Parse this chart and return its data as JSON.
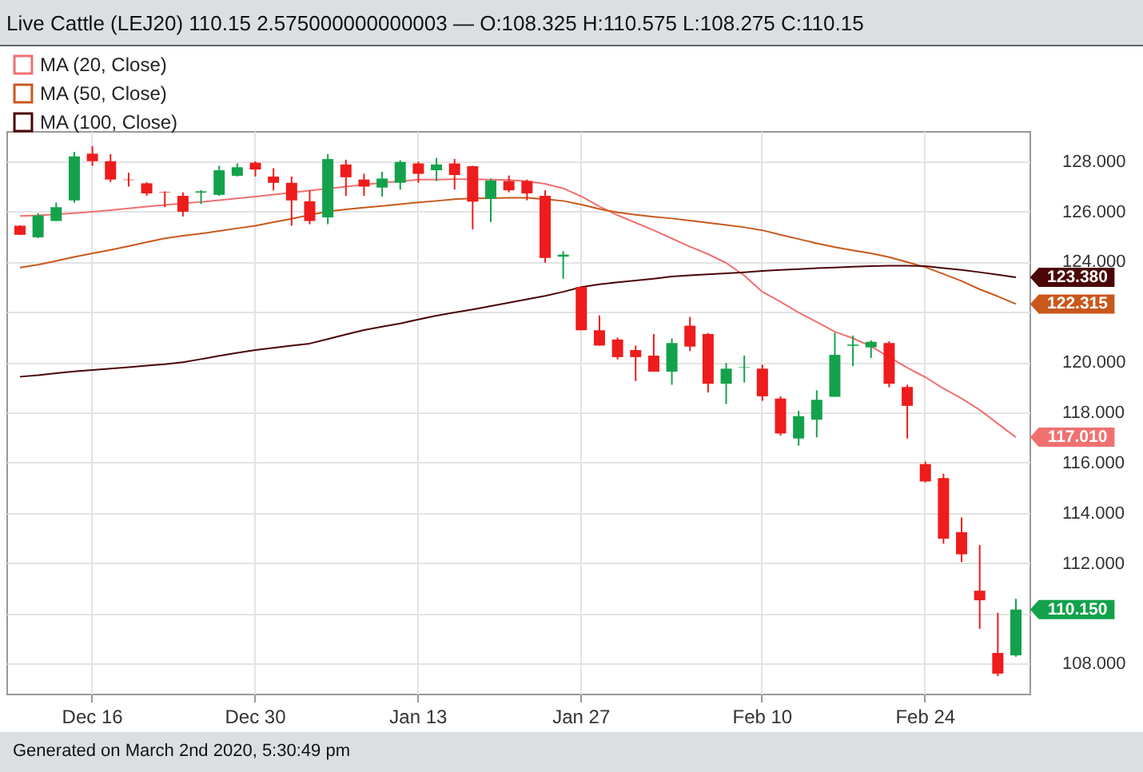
{
  "chart_data": {
    "type": "candlestick",
    "title": "Live Cattle (LEJ20) 110.15 2.575000000000003 — O:108.325 H:110.575 L:108.275 C:110.15",
    "categories": [
      null,
      null,
      null,
      null,
      "Dec 16",
      null,
      null,
      null,
      null,
      null,
      null,
      null,
      null,
      "Dec 30",
      null,
      null,
      null,
      null,
      null,
      null,
      null,
      null,
      "Jan 13",
      null,
      null,
      null,
      null,
      null,
      null,
      null,
      null,
      "Jan 27",
      null,
      null,
      null,
      null,
      null,
      null,
      null,
      null,
      null,
      "Feb 10",
      null,
      null,
      null,
      null,
      null,
      null,
      null,
      null,
      "Feb 24",
      null,
      null,
      null,
      null,
      null
    ],
    "ohlc": [
      [
        125.43,
        125.45,
        125.07,
        125.07
      ],
      [
        124.97,
        125.93,
        124.94,
        125.84
      ],
      [
        125.62,
        126.35,
        125.62,
        126.17
      ],
      [
        126.44,
        128.37,
        126.35,
        128.19
      ],
      [
        128.3,
        128.6,
        127.82,
        128.0
      ],
      [
        128.0,
        128.28,
        127.17,
        127.27
      ],
      [
        127.27,
        127.54,
        126.99,
        127.25
      ],
      [
        127.12,
        127.17,
        126.62,
        126.72
      ],
      [
        126.77,
        126.8,
        126.17,
        126.75
      ],
      [
        126.62,
        126.76,
        125.8,
        125.99
      ],
      [
        126.75,
        126.85,
        126.29,
        126.8
      ],
      [
        126.66,
        127.82,
        126.62,
        127.64
      ],
      [
        127.42,
        127.91,
        127.39,
        127.76
      ],
      [
        127.94,
        128.0,
        127.39,
        127.67
      ],
      [
        127.39,
        127.72,
        126.84,
        127.14
      ],
      [
        127.14,
        127.39,
        125.43,
        126.44
      ],
      [
        126.4,
        126.84,
        125.49,
        125.62
      ],
      [
        125.76,
        128.28,
        125.49,
        128.09
      ],
      [
        127.87,
        128.06,
        126.62,
        127.36
      ],
      [
        127.27,
        127.5,
        126.62,
        126.99
      ],
      [
        126.95,
        127.58,
        126.59,
        127.31
      ],
      [
        127.14,
        128.04,
        126.87,
        127.97
      ],
      [
        127.91,
        127.98,
        127.14,
        127.5
      ],
      [
        127.64,
        128.13,
        127.21,
        127.87
      ],
      [
        127.91,
        128.09,
        126.87,
        127.45
      ],
      [
        127.8,
        127.82,
        125.29,
        126.39
      ],
      [
        126.5,
        127.31,
        125.58,
        127.23
      ],
      [
        127.21,
        127.43,
        126.76,
        126.84
      ],
      [
        127.21,
        127.27,
        126.44,
        126.72
      ],
      [
        126.62,
        126.84,
        123.96,
        124.15
      ],
      [
        124.2,
        124.42,
        123.32,
        124.28
      ],
      [
        122.99,
        122.99,
        121.27,
        121.27
      ],
      [
        121.27,
        121.86,
        120.66,
        120.66
      ],
      [
        120.9,
        120.98,
        120.11,
        120.2
      ],
      [
        120.48,
        120.66,
        119.25,
        120.2
      ],
      [
        120.26,
        121.12,
        119.62,
        119.62
      ],
      [
        119.62,
        120.94,
        119.1,
        120.76
      ],
      [
        121.45,
        121.8,
        120.44,
        120.62
      ],
      [
        121.12,
        121.16,
        118.79,
        119.14
      ],
      [
        119.14,
        119.96,
        118.33,
        119.74
      ],
      [
        119.78,
        120.26,
        119.19,
        119.8
      ],
      [
        119.74,
        119.9,
        118.46,
        118.64
      ],
      [
        118.55,
        118.64,
        117.08,
        117.16
      ],
      [
        116.96,
        118.06,
        116.68,
        117.85
      ],
      [
        117.71,
        118.88,
        117.01,
        118.5
      ],
      [
        118.62,
        121.17,
        118.62,
        120.29
      ],
      [
        120.65,
        121.06,
        119.84,
        120.7
      ],
      [
        120.59,
        120.87,
        120.17,
        120.81
      ],
      [
        120.76,
        120.83,
        119.0,
        119.14
      ],
      [
        119.01,
        119.1,
        116.96,
        118.26
      ],
      [
        115.94,
        116.04,
        115.21,
        115.25
      ],
      [
        115.38,
        115.56,
        112.77,
        112.97
      ],
      [
        113.23,
        113.82,
        112.04,
        112.35
      ],
      [
        110.9,
        112.72,
        109.38,
        110.52
      ],
      [
        108.42,
        110.02,
        107.5,
        107.6
      ],
      [
        108.325,
        110.575,
        108.275,
        110.15
      ]
    ],
    "colors": [
      "#ee1c1c",
      "#13a24b",
      "#13a24b",
      "#13a24b",
      "#ee1c1c",
      "#ee1c1c",
      "#ee1c1c",
      "#ee1c1c",
      "#ee1c1c",
      "#ee1c1c",
      "#13a24b",
      "#13a24b",
      "#13a24b",
      "#ee1c1c",
      "#ee1c1c",
      "#ee1c1c",
      "#ee1c1c",
      "#13a24b",
      "#ee1c1c",
      "#ee1c1c",
      "#13a24b",
      "#13a24b",
      "#ee1c1c",
      "#13a24b",
      "#ee1c1c",
      "#ee1c1c",
      "#13a24b",
      "#ee1c1c",
      "#ee1c1c",
      "#ee1c1c",
      "#13a24b",
      "#ee1c1c",
      "#ee1c1c",
      "#ee1c1c",
      "#ee1c1c",
      "#ee1c1c",
      "#13a24b",
      "#ee1c1c",
      "#ee1c1c",
      "#13a24b",
      "#13a24b",
      "#ee1c1c",
      "#ee1c1c",
      "#13a24b",
      "#13a24b",
      "#13a24b",
      "#13a24b",
      "#13a24b",
      "#ee1c1c",
      "#ee1c1c",
      "#ee1c1c",
      "#ee1c1c",
      "#ee1c1c",
      "#ee1c1c",
      "#ee1c1c",
      "#13a24b"
    ],
    "series": [
      {
        "name": "MA (20, Close)",
        "type": "line",
        "color": "#f07070",
        "value_labels": [
          null,
          null,
          null,
          null,
          null,
          null,
          null,
          null,
          null,
          null,
          null,
          null,
          null,
          null,
          null,
          null,
          null,
          null,
          null,
          null,
          null,
          null,
          null,
          null,
          null,
          null,
          null,
          null,
          null,
          null,
          null,
          null,
          null,
          null,
          null,
          null,
          null,
          null,
          null,
          null,
          null,
          null,
          null,
          null,
          null,
          null,
          null,
          null,
          null,
          null,
          null,
          null,
          null,
          null,
          null,
          "117.010"
        ],
        "values": [
          125.82,
          125.84,
          125.88,
          125.93,
          125.99,
          126.05,
          126.12,
          126.19,
          126.26,
          126.32,
          126.38,
          126.45,
          126.52,
          126.59,
          126.67,
          126.75,
          126.83,
          126.91,
          126.99,
          127.07,
          127.14,
          127.2,
          127.27,
          127.27,
          127.28,
          127.28,
          127.27,
          127.25,
          127.2,
          127.1,
          126.92,
          126.6,
          126.2,
          125.85,
          125.55,
          125.25,
          124.92,
          124.6,
          124.3,
          123.95,
          123.45,
          122.8,
          122.4,
          121.97,
          121.6,
          121.21,
          120.95,
          120.63,
          120.2,
          119.78,
          119.4,
          118.95,
          118.55,
          118.1,
          117.55,
          117.01
        ]
      },
      {
        "name": "MA (50, Close)",
        "type": "line",
        "color": "#c8581c",
        "value_labels": [
          null,
          null,
          null,
          null,
          null,
          null,
          null,
          null,
          null,
          null,
          null,
          null,
          null,
          null,
          null,
          null,
          null,
          null,
          null,
          null,
          null,
          null,
          null,
          null,
          null,
          null,
          null,
          null,
          null,
          null,
          null,
          null,
          null,
          null,
          null,
          null,
          null,
          null,
          null,
          null,
          null,
          null,
          null,
          null,
          null,
          null,
          null,
          null,
          null,
          null,
          null,
          null,
          null,
          null,
          null,
          "122.315"
        ],
        "values": [
          123.77,
          123.88,
          124.03,
          124.19,
          124.33,
          124.47,
          124.62,
          124.78,
          124.93,
          125.03,
          125.12,
          125.22,
          125.33,
          125.43,
          125.57,
          125.71,
          125.86,
          126.0,
          126.08,
          126.15,
          126.22,
          126.29,
          126.36,
          126.42,
          126.49,
          126.52,
          126.53,
          126.54,
          126.54,
          126.49,
          126.42,
          126.27,
          126.1,
          125.96,
          125.87,
          125.79,
          125.72,
          125.64,
          125.55,
          125.46,
          125.37,
          125.25,
          125.07,
          124.9,
          124.73,
          124.58,
          124.45,
          124.33,
          124.18,
          123.98,
          123.78,
          123.51,
          123.23,
          122.9,
          122.62,
          122.315
        ]
      },
      {
        "name": "MA (100, Close)",
        "type": "line",
        "color": "#4a0505",
        "value_labels": [
          null,
          null,
          null,
          null,
          null,
          null,
          null,
          null,
          null,
          null,
          null,
          null,
          null,
          null,
          null,
          null,
          null,
          null,
          null,
          null,
          null,
          null,
          null,
          null,
          null,
          null,
          null,
          null,
          null,
          null,
          null,
          null,
          null,
          null,
          null,
          null,
          null,
          null,
          null,
          null,
          null,
          null,
          null,
          null,
          null,
          null,
          null,
          null,
          null,
          null,
          null,
          null,
          null,
          null,
          null,
          "123.380"
        ],
        "values": [
          119.42,
          119.48,
          119.56,
          119.63,
          119.69,
          119.74,
          119.8,
          119.86,
          119.92,
          120.0,
          120.12,
          120.25,
          120.37,
          120.48,
          120.57,
          120.66,
          120.74,
          120.92,
          121.1,
          121.28,
          121.41,
          121.54,
          121.7,
          121.85,
          121.98,
          122.1,
          122.23,
          122.37,
          122.5,
          122.64,
          122.8,
          122.99,
          123.1,
          123.18,
          123.25,
          123.32,
          123.41,
          123.46,
          123.5,
          123.54,
          123.58,
          123.63,
          123.67,
          123.7,
          123.74,
          123.77,
          123.8,
          123.82,
          123.84,
          123.84,
          123.82,
          123.74,
          123.67,
          123.58,
          123.48,
          123.38
        ]
      }
    ],
    "ylim": [
      106.8,
      129.2
    ],
    "yticks": [
      {
        "value": 108,
        "label": "108.000"
      },
      {
        "value": 110,
        "label": null
      },
      {
        "value": 112,
        "label": "112.000"
      },
      {
        "value": 114,
        "label": "114.000"
      },
      {
        "value": 116,
        "label": "116.000"
      },
      {
        "value": 118,
        "label": "118.000"
      },
      {
        "value": 120,
        "label": "120.000"
      },
      {
        "value": 122,
        "label": null
      },
      {
        "value": 124,
        "label": "124.000"
      },
      {
        "value": 126,
        "label": "126.000"
      },
      {
        "value": 128,
        "label": "128.000"
      }
    ],
    "grid": true,
    "legend": "top left",
    "value_labels": [
      null,
      null,
      null,
      null,
      null,
      null,
      null,
      null,
      null,
      null,
      null,
      null,
      null,
      null,
      null,
      null,
      null,
      null,
      null,
      null,
      null,
      null,
      null,
      null,
      null,
      null,
      null,
      null,
      null,
      null,
      null,
      null,
      null,
      null,
      null,
      null,
      null,
      null,
      null,
      null,
      null,
      null,
      null,
      null,
      null,
      null,
      null,
      null,
      null,
      null,
      null,
      null,
      null,
      null,
      null,
      "110.150"
    ],
    "annotations": [
      "Generated on March 2nd 2020, 5:30:49 pm"
    ]
  }
}
